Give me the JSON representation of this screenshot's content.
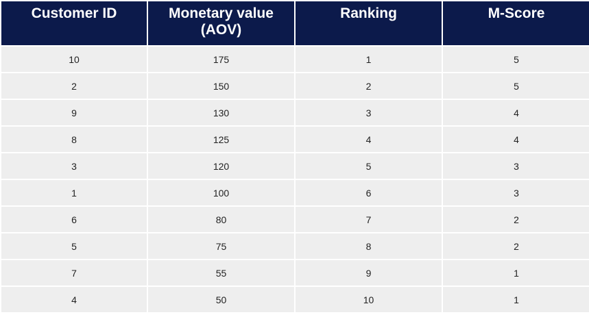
{
  "table": {
    "columns": [
      "Customer ID",
      "Monetary value (AOV)",
      "Ranking",
      "M-Score"
    ],
    "rows": [
      [
        "10",
        "175",
        "1",
        "5"
      ],
      [
        "2",
        "150",
        "2",
        "5"
      ],
      [
        "9",
        "130",
        "3",
        "4"
      ],
      [
        "8",
        "125",
        "4",
        "4"
      ],
      [
        "3",
        "120",
        "5",
        "3"
      ],
      [
        "1",
        "100",
        "6",
        "3"
      ],
      [
        "6",
        "80",
        "7",
        "2"
      ],
      [
        "5",
        "75",
        "8",
        "2"
      ],
      [
        "7",
        "55",
        "9",
        "1"
      ],
      [
        "4",
        "50",
        "10",
        "1"
      ]
    ]
  },
  "colors": {
    "header_bg": "#0c1a4b",
    "header_text": "#ffffff",
    "cell_bg": "#eeeeee",
    "cell_text": "#222222"
  }
}
